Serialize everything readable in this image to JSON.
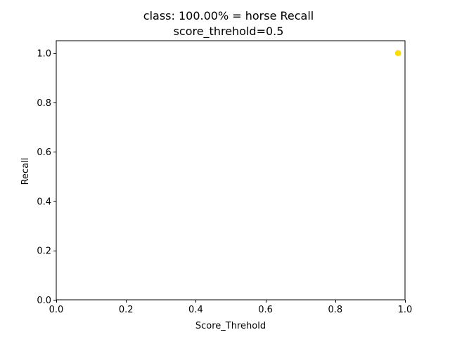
{
  "chart_data": {
    "type": "scatter",
    "title": "class: 100.00% = horse Recall",
    "subtitle": "score_threhold=0.5",
    "xlabel": "Score_Threhold",
    "ylabel": "Recall",
    "xlim": [
      0.0,
      1.0
    ],
    "ylim": [
      0.0,
      1.05
    ],
    "xticks": [
      0.0,
      0.2,
      0.4,
      0.6,
      0.8,
      1.0
    ],
    "xtick_labels": [
      "0.0",
      "0.2",
      "0.4",
      "0.6",
      "0.8",
      "1.0"
    ],
    "yticks": [
      0.0,
      0.2,
      0.4,
      0.6,
      0.8,
      1.0
    ],
    "ytick_labels": [
      "0.0",
      "0.2",
      "0.4",
      "0.6",
      "0.8",
      "1.0"
    ],
    "grid": false,
    "series": [
      {
        "points": [
          {
            "x": 0.98,
            "y": 1.0
          }
        ],
        "color": "#ffdd00"
      }
    ]
  }
}
